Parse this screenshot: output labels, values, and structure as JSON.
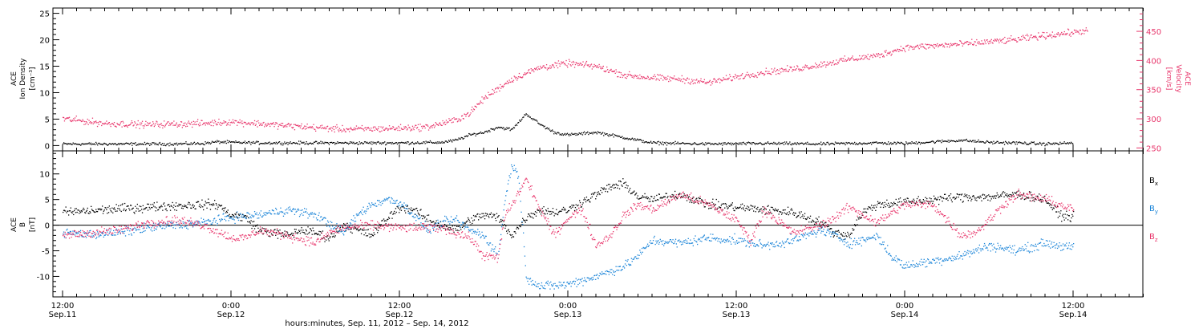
{
  "figure": {
    "xlabel": "hours:minutes, Sep. 11, 2012 – Sep. 14, 2012",
    "x_range_hours": [
      0,
      78
    ],
    "x_ticks": [
      {
        "h": 0,
        "time": "12:00",
        "date": "Sep.11"
      },
      {
        "h": 12,
        "time": "0:00",
        "date": "Sep.12"
      },
      {
        "h": 24,
        "time": "12:00",
        "date": "Sep.12"
      },
      {
        "h": 36,
        "time": "0:00",
        "date": "Sep.13"
      },
      {
        "h": 48,
        "time": "12:00",
        "date": "Sep.13"
      },
      {
        "h": 60,
        "time": "0:00",
        "date": "Sep.14"
      },
      {
        "h": 72,
        "time": "12:00",
        "date": "Sep.14"
      }
    ]
  },
  "colors": {
    "black": "#000000",
    "pink": "#e8356b",
    "blue": "#1a84d8"
  },
  "chart_data": [
    {
      "type": "scatter",
      "panel": "top",
      "ylabel_lines": [
        "ACE",
        "Ion Density",
        "[cm⁻³]"
      ],
      "ylim": [
        -1,
        26
      ],
      "y_ticks": [
        0,
        5,
        10,
        15,
        20,
        25
      ],
      "y2label_lines": [
        "ACE",
        "Velocity",
        "[km/s]"
      ],
      "y2lim": [
        245,
        490
      ],
      "y2_ticks": [
        250,
        300,
        350,
        400,
        450
      ],
      "series": [
        {
          "color": "black",
          "axis": "left",
          "points": [
            [
              0,
              0.3
            ],
            [
              4,
              0.3
            ],
            [
              8,
              0.3
            ],
            [
              10,
              0.4
            ],
            [
              11,
              0.7
            ],
            [
              12,
              0.6
            ],
            [
              14,
              0.5
            ],
            [
              16,
              0.5
            ],
            [
              20,
              0.5
            ],
            [
              24,
              0.5
            ],
            [
              27,
              0.6
            ],
            [
              28,
              1.0
            ],
            [
              29,
              2.0
            ],
            [
              30,
              2.5
            ],
            [
              31,
              3.5
            ],
            [
              32,
              3.0
            ],
            [
              33,
              6.0
            ],
            [
              34,
              4.0
            ],
            [
              35,
              2.5
            ],
            [
              36,
              2.0
            ],
            [
              38,
              2.5
            ],
            [
              40,
              1.5
            ],
            [
              41,
              1.0
            ],
            [
              42,
              0.5
            ],
            [
              46,
              0.3
            ],
            [
              50,
              0.4
            ],
            [
              54,
              0.3
            ],
            [
              58,
              0.5
            ],
            [
              60,
              0.4
            ],
            [
              62,
              0.7
            ],
            [
              64,
              1.0
            ],
            [
              66,
              0.6
            ],
            [
              68,
              0.5
            ],
            [
              70,
              0.3
            ],
            [
              72,
              0.5
            ]
          ]
        },
        {
          "color": "pink",
          "axis": "right",
          "points": [
            [
              0,
              300
            ],
            [
              3,
              292
            ],
            [
              6,
              290
            ],
            [
              10,
              292
            ],
            [
              12,
              295
            ],
            [
              16,
              288
            ],
            [
              20,
              282
            ],
            [
              23,
              283
            ],
            [
              26,
              286
            ],
            [
              28,
              298
            ],
            [
              29,
              310
            ],
            [
              30,
              335
            ],
            [
              31,
              352
            ],
            [
              32,
              368
            ],
            [
              34,
              388
            ],
            [
              36,
              395
            ],
            [
              38,
              390
            ],
            [
              40,
              375
            ],
            [
              42,
              370
            ],
            [
              44,
              368
            ],
            [
              46,
              362
            ],
            [
              48,
              372
            ],
            [
              50,
              380
            ],
            [
              52,
              385
            ],
            [
              54,
              393
            ],
            [
              56,
              402
            ],
            [
              58,
              408
            ],
            [
              60,
              422
            ],
            [
              62,
              425
            ],
            [
              64,
              428
            ],
            [
              66,
              432
            ],
            [
              68,
              436
            ],
            [
              70,
              443
            ],
            [
              72,
              448
            ],
            [
              73,
              452
            ]
          ]
        }
      ]
    },
    {
      "type": "scatter",
      "panel": "bottom",
      "ylabel_lines": [
        "ACE",
        "B",
        "[nT]"
      ],
      "ylim": [
        -14,
        14.5
      ],
      "y_ticks": [
        -10,
        -5,
        0,
        5,
        10
      ],
      "zero_line": true,
      "legend": [
        {
          "label": "B",
          "sub": "x",
          "color": "black"
        },
        {
          "label": "B",
          "sub": "y",
          "color": "blue"
        },
        {
          "label": "B",
          "sub": "z",
          "color": "pink"
        }
      ],
      "series": [
        {
          "name": "Bx",
          "color": "black",
          "points": [
            [
              0,
              2.5
            ],
            [
              2,
              2.8
            ],
            [
              4,
              3.2
            ],
            [
              6,
              3.5
            ],
            [
              8,
              3.8
            ],
            [
              10,
              4.0
            ],
            [
              11,
              4.0
            ],
            [
              12,
              2.0
            ],
            [
              13,
              1.5
            ],
            [
              14,
              -1.0
            ],
            [
              15,
              -1.5
            ],
            [
              16,
              -2.0
            ],
            [
              17,
              -1.0
            ],
            [
              18,
              -1.5
            ],
            [
              19,
              -2.5
            ],
            [
              20,
              0.0
            ],
            [
              21,
              -1.0
            ],
            [
              22,
              -2.0
            ],
            [
              23,
              1.0
            ],
            [
              24,
              3.5
            ],
            [
              25,
              3.0
            ],
            [
              26,
              1.0
            ],
            [
              27,
              0.0
            ],
            [
              28,
              -1.0
            ],
            [
              29,
              1.0
            ],
            [
              30,
              2.0
            ],
            [
              31,
              1.5
            ],
            [
              32,
              -2.0
            ],
            [
              33,
              1.5
            ],
            [
              34,
              3.0
            ],
            [
              35,
              2.5
            ],
            [
              36,
              3.0
            ],
            [
              38,
              6.0
            ],
            [
              39,
              7.5
            ],
            [
              40,
              8.0
            ],
            [
              41,
              5.5
            ],
            [
              42,
              5.0
            ],
            [
              44,
              6.0
            ],
            [
              46,
              4.0
            ],
            [
              48,
              3.5
            ],
            [
              50,
              3.0
            ],
            [
              52,
              2.5
            ],
            [
              54,
              0.5
            ],
            [
              55,
              -1.5
            ],
            [
              56,
              -2.0
            ],
            [
              57,
              2.5
            ],
            [
              58,
              4.0
            ],
            [
              60,
              4.5
            ],
            [
              62,
              5.0
            ],
            [
              64,
              5.5
            ],
            [
              66,
              5.5
            ],
            [
              68,
              6.0
            ],
            [
              70,
              5.0
            ],
            [
              71,
              2.0
            ],
            [
              72,
              1.5
            ]
          ]
        },
        {
          "name": "By",
          "color": "blue",
          "points": [
            [
              0,
              -1.5
            ],
            [
              2,
              -1.8
            ],
            [
              4,
              -1.5
            ],
            [
              6,
              -0.5
            ],
            [
              8,
              0.0
            ],
            [
              10,
              0.5
            ],
            [
              12,
              1.5
            ],
            [
              14,
              2.0
            ],
            [
              16,
              3.0
            ],
            [
              18,
              2.0
            ],
            [
              20,
              -1.5
            ],
            [
              21,
              2.0
            ],
            [
              22,
              4.0
            ],
            [
              23,
              5.0
            ],
            [
              24,
              4.5
            ],
            [
              25,
              2.0
            ],
            [
              26,
              -1.0
            ],
            [
              27,
              0.5
            ],
            [
              28,
              1.0
            ],
            [
              29,
              -1.0
            ],
            [
              30,
              -2.0
            ],
            [
              31,
              -6.0
            ],
            [
              31.5,
              5.0
            ],
            [
              32,
              12.0
            ],
            [
              32.5,
              9.0
            ],
            [
              33,
              -10.0
            ],
            [
              34,
              -12.0
            ],
            [
              36,
              -11.5
            ],
            [
              38,
              -10.0
            ],
            [
              40,
              -8.0
            ],
            [
              41,
              -6.0
            ],
            [
              42,
              -3.0
            ],
            [
              44,
              -3.5
            ],
            [
              46,
              -2.5
            ],
            [
              48,
              -3.0
            ],
            [
              50,
              -4.0
            ],
            [
              52,
              -3.0
            ],
            [
              53,
              -2.0
            ],
            [
              54,
              -1.0
            ],
            [
              55,
              -2.0
            ],
            [
              56,
              -3.5
            ],
            [
              57,
              -3.0
            ],
            [
              58,
              -2.0
            ],
            [
              59,
              -6.0
            ],
            [
              60,
              -8.0
            ],
            [
              62,
              -7.0
            ],
            [
              64,
              -6.0
            ],
            [
              66,
              -4.0
            ],
            [
              68,
              -5.0
            ],
            [
              70,
              -3.5
            ],
            [
              72,
              -4.5
            ]
          ]
        },
        {
          "name": "Bz",
          "color": "pink",
          "points": [
            [
              0,
              -2.0
            ],
            [
              2,
              -1.5
            ],
            [
              4,
              -1.0
            ],
            [
              6,
              0.5
            ],
            [
              8,
              1.0
            ],
            [
              10,
              0.0
            ],
            [
              12,
              -2.5
            ],
            [
              13,
              -2.5
            ],
            [
              14,
              -1.0
            ],
            [
              16,
              -2.0
            ],
            [
              18,
              -3.5
            ],
            [
              19,
              -1.5
            ],
            [
              20,
              -0.5
            ],
            [
              22,
              0.0
            ],
            [
              24,
              -0.5
            ],
            [
              26,
              -0.5
            ],
            [
              27,
              -0.5
            ],
            [
              28,
              -1.5
            ],
            [
              29,
              -2.5
            ],
            [
              30,
              -6.0
            ],
            [
              31,
              -6.5
            ],
            [
              31.5,
              2.0
            ],
            [
              32,
              4.0
            ],
            [
              33,
              9.0
            ],
            [
              34,
              3.0
            ],
            [
              35,
              -2.0
            ],
            [
              36,
              1.5
            ],
            [
              37,
              3.0
            ],
            [
              38,
              -4.0
            ],
            [
              39,
              -2.0
            ],
            [
              40,
              2.0
            ],
            [
              41,
              4.0
            ],
            [
              42,
              3.0
            ],
            [
              44,
              6.0
            ],
            [
              46,
              4.0
            ],
            [
              48,
              1.0
            ],
            [
              49,
              -3.0
            ],
            [
              50,
              3.0
            ],
            [
              52,
              -1.5
            ],
            [
              54,
              0.0
            ],
            [
              55,
              1.5
            ],
            [
              56,
              3.5
            ],
            [
              58,
              0.5
            ],
            [
              60,
              4.0
            ],
            [
              62,
              4.0
            ],
            [
              64,
              -2.0
            ],
            [
              65,
              -1.5
            ],
            [
              66,
              1.0
            ],
            [
              67,
              4.0
            ],
            [
              68,
              6.0
            ],
            [
              70,
              5.0
            ],
            [
              72,
              3.0
            ]
          ]
        }
      ]
    }
  ]
}
